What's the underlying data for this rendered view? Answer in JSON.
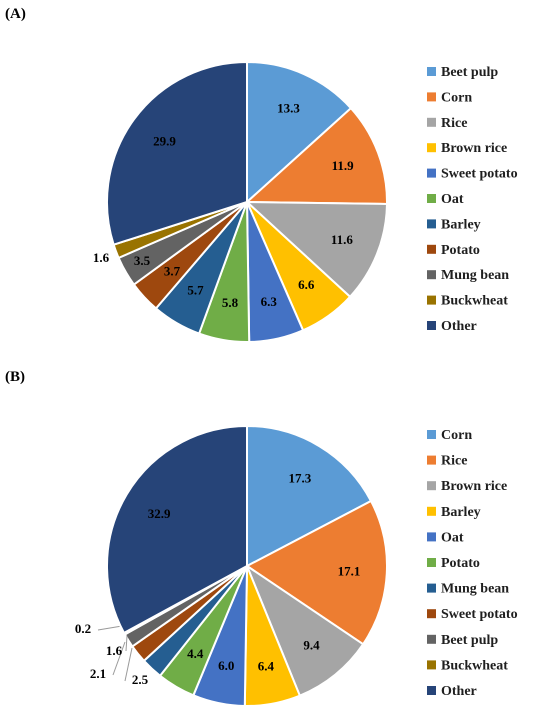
{
  "chart_data": [
    {
      "type": "pie",
      "panel_label": "(A)",
      "legend_position": "right",
      "slices": [
        {
          "name": "Beet pulp",
          "value": 13.3,
          "color": "#5B9BD5"
        },
        {
          "name": "Corn",
          "value": 11.9,
          "color": "#ED7D31"
        },
        {
          "name": "Rice",
          "value": 11.6,
          "color": "#A5A5A5"
        },
        {
          "name": "Brown rice",
          "value": 6.6,
          "color": "#FFC000"
        },
        {
          "name": "Sweet potato",
          "value": 6.3,
          "color": "#4472C4"
        },
        {
          "name": "Oat",
          "value": 5.8,
          "color": "#70AD47"
        },
        {
          "name": "Barley",
          "value": 5.7,
          "color": "#255E91"
        },
        {
          "name": "Potato",
          "value": 3.7,
          "color": "#9E480E"
        },
        {
          "name": "Mung bean",
          "value": 3.5,
          "color": "#636363"
        },
        {
          "name": "Buckwheat",
          "value": 1.6,
          "color": "#997300"
        },
        {
          "name": "Other",
          "value": 29.9,
          "color": "#264478"
        }
      ]
    },
    {
      "type": "pie",
      "panel_label": "(B)",
      "legend_position": "right",
      "slices": [
        {
          "name": "Corn",
          "value": 17.3,
          "color": "#5B9BD5"
        },
        {
          "name": "Rice",
          "value": 17.1,
          "color": "#ED7D31"
        },
        {
          "name": "Brown rice",
          "value": 9.4,
          "color": "#A5A5A5"
        },
        {
          "name": "Barley",
          "value": 6.4,
          "color": "#FFC000"
        },
        {
          "name": "Oat",
          "value": 6.0,
          "color": "#4472C4"
        },
        {
          "name": "Potato",
          "value": 4.4,
          "color": "#70AD47"
        },
        {
          "name": "Mung bean",
          "value": 2.5,
          "color": "#255E91"
        },
        {
          "name": "Sweet potato",
          "value": 2.1,
          "color": "#9E480E"
        },
        {
          "name": "Beet pulp",
          "value": 1.6,
          "color": "#636363"
        },
        {
          "name": "Buckwheat",
          "value": 0.2,
          "color": "#997300"
        },
        {
          "name": "Other",
          "value": 32.9,
          "color": "#264478"
        }
      ]
    }
  ]
}
